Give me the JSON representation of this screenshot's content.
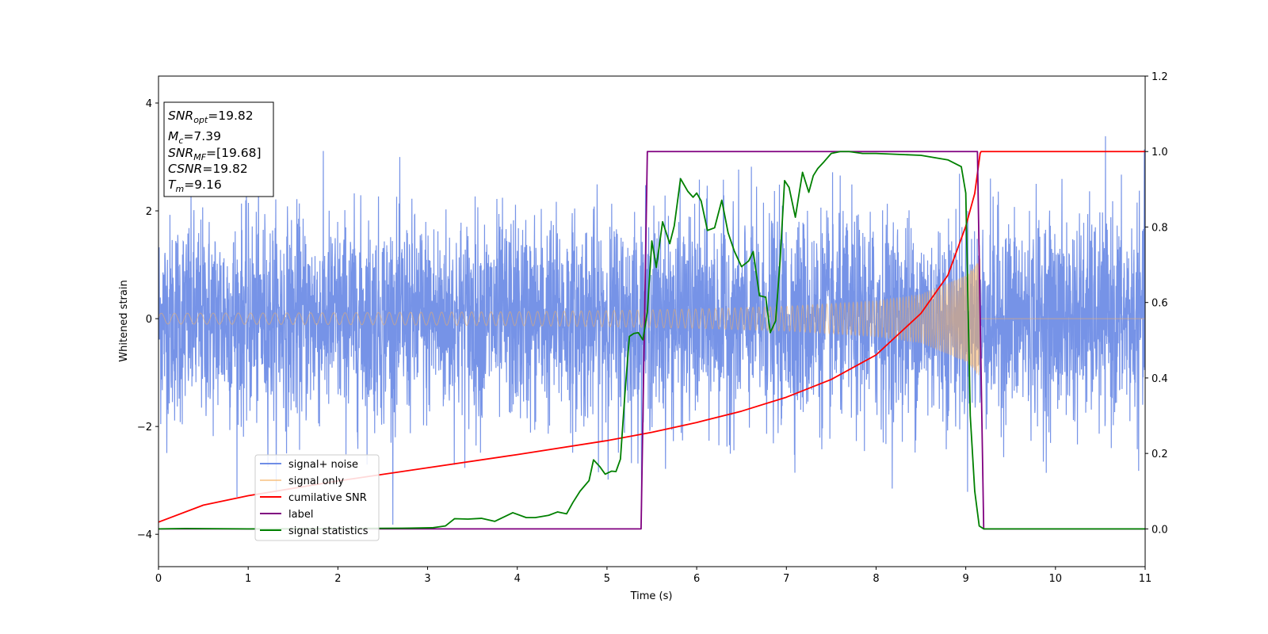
{
  "chart_data": {
    "type": "line",
    "xlabel": "Time (s)",
    "ylabel": "Whitened strain",
    "xlim": [
      0,
      11
    ],
    "ylim": [
      -4.6,
      4.5
    ],
    "y2lim": [
      -0.1,
      1.2
    ],
    "xticks": [
      "0",
      "1",
      "2",
      "3",
      "4",
      "5",
      "6",
      "7",
      "8",
      "9",
      "10",
      "11"
    ],
    "yticks": [
      "−4",
      "−2",
      "0",
      "2",
      "4"
    ],
    "y2ticks": [
      "0.0",
      "0.2",
      "0.4",
      "0.6",
      "0.8",
      "1.0",
      "1.2"
    ],
    "legend_position": "lower-left",
    "stats_box": {
      "snr_opt": {
        "base": "SNR",
        "sub": "opt",
        "value": "=19.82"
      },
      "mc": {
        "base": "M",
        "sub": "c",
        "value": "=7.39"
      },
      "snr_mf": {
        "base": "SNR",
        "sub": "MF",
        "value": "=[19.68]"
      },
      "csnr": {
        "base": "CSNR",
        "sub": "",
        "value": "=19.82"
      },
      "tm": {
        "base": "T",
        "sub": "m",
        "value": "=9.16"
      }
    },
    "series": [
      {
        "name": "signal+ noise",
        "axis": "left",
        "color": "#6f8de6",
        "description_points": "noise, roughly ±2 with spikes to ±4, from 0 to 11 s"
      },
      {
        "name": "signal only",
        "axis": "left",
        "color": "#f5b060",
        "envelope": {
          "x": [
            0,
            2,
            4,
            5,
            6,
            7,
            8,
            8.5,
            9,
            9.16,
            9.17,
            11
          ],
          "amp": [
            0.1,
            0.11,
            0.13,
            0.15,
            0.18,
            0.23,
            0.33,
            0.45,
            0.8,
            1.1,
            0.0,
            0.0
          ]
        }
      },
      {
        "name": "cumilative SNR",
        "axis": "right",
        "color": "#ff0000",
        "x": [
          0,
          0.5,
          1,
          2,
          3,
          4,
          5,
          5.5,
          6,
          6.5,
          7,
          7.5,
          8,
          8.5,
          8.8,
          9,
          9.1,
          9.16,
          9.17,
          11
        ],
        "y": [
          0.018,
          0.063,
          0.088,
          0.127,
          0.162,
          0.197,
          0.234,
          0.256,
          0.282,
          0.312,
          0.349,
          0.396,
          0.461,
          0.571,
          0.672,
          0.802,
          0.889,
          0.995,
          1.0,
          1.0
        ]
      },
      {
        "name": "label",
        "axis": "right",
        "color": "#800080",
        "x": [
          0,
          5.38,
          5.45,
          9.13,
          9.2,
          11
        ],
        "y": [
          0,
          0,
          1,
          1,
          0,
          0
        ]
      },
      {
        "name": "signal statistics",
        "axis": "right",
        "color": "#008000",
        "x": [
          0,
          0.3,
          1,
          2,
          2.8,
          3.05,
          3.2,
          3.3,
          3.45,
          3.6,
          3.75,
          3.95,
          4.1,
          4.2,
          4.35,
          4.45,
          4.55,
          4.62,
          4.7,
          4.8,
          4.85,
          4.92,
          4.98,
          5.05,
          5.1,
          5.15,
          5.2,
          5.25,
          5.3,
          5.35,
          5.4,
          5.45,
          5.5,
          5.55,
          5.62,
          5.7,
          5.75,
          5.82,
          5.9,
          5.96,
          6.0,
          6.05,
          6.12,
          6.2,
          6.28,
          6.35,
          6.42,
          6.5,
          6.58,
          6.63,
          6.7,
          6.77,
          6.82,
          6.88,
          6.93,
          6.98,
          7.03,
          7.1,
          7.18,
          7.25,
          7.3,
          7.35,
          7.42,
          7.5,
          7.6,
          7.7,
          7.85,
          8.0,
          8.5,
          8.8,
          8.95,
          9.0,
          9.05,
          9.1,
          9.15,
          9.2,
          9.3,
          11
        ],
        "y": [
          0.0,
          0.001,
          0.0,
          0.001,
          0.002,
          0.003,
          0.008,
          0.027,
          0.026,
          0.028,
          0.02,
          0.043,
          0.03,
          0.03,
          0.036,
          0.045,
          0.04,
          0.07,
          0.1,
          0.128,
          0.183,
          0.165,
          0.145,
          0.153,
          0.152,
          0.185,
          0.358,
          0.51,
          0.518,
          0.52,
          0.501,
          0.575,
          0.763,
          0.693,
          0.814,
          0.756,
          0.803,
          0.928,
          0.895,
          0.879,
          0.89,
          0.869,
          0.791,
          0.798,
          0.871,
          0.785,
          0.736,
          0.695,
          0.71,
          0.735,
          0.618,
          0.614,
          0.52,
          0.551,
          0.711,
          0.923,
          0.905,
          0.826,
          0.945,
          0.892,
          0.936,
          0.955,
          0.973,
          0.995,
          1.0,
          1.0,
          0.995,
          0.995,
          0.99,
          0.978,
          0.96,
          0.89,
          0.3,
          0.1,
          0.008,
          0.0,
          0.0,
          0.0
        ]
      }
    ],
    "colors": {
      "noise": "#6f8de6",
      "signal": "#f5b060",
      "signal_overlap": "#c09c7a",
      "cumulative_snr": "#ff0000",
      "label": "#800080",
      "statistics": "#008000"
    }
  }
}
